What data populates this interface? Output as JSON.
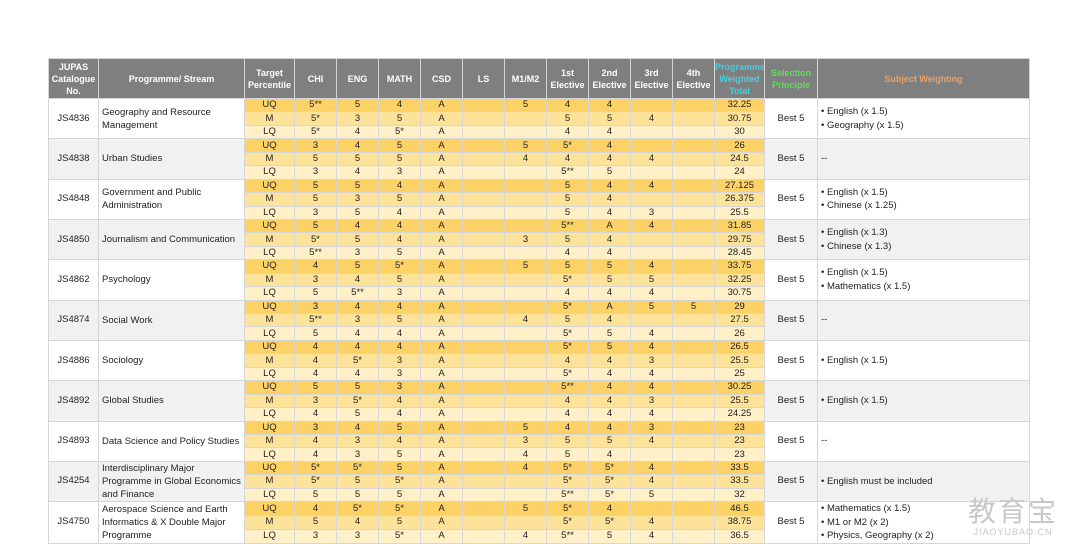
{
  "headers": {
    "catalogue": "JUPAS Catalogue No.",
    "programme": "Programme/ Stream",
    "target": "Target Percentile",
    "chi": "CHI",
    "eng": "ENG",
    "math": "MATH",
    "csd": "CSD",
    "ls": "LS",
    "m1m2": "M1/M2",
    "e1": "1st Elective",
    "e2": "2nd Elective",
    "e3": "3rd Elective",
    "e4": "4th Elective",
    "pwt": "Programme Weighted Total",
    "sp": "Selection Principle",
    "sw": "Subject Weighting"
  },
  "programmes": [
    {
      "code": "JS4836",
      "name": "Geography and Resource Management",
      "principle": "Best 5",
      "weighting": [
        "• English (x 1.5)",
        "• Geography (x 1.5)"
      ],
      "rows": [
        {
          "p": "UQ",
          "chi": "5**",
          "eng": "5",
          "math": "4",
          "csd": "A",
          "ls": "",
          "m": "5",
          "e1": "4",
          "e2": "4",
          "e3": "",
          "e4": "",
          "total": "32.25"
        },
        {
          "p": "M",
          "chi": "5*",
          "eng": "3",
          "math": "5",
          "csd": "A",
          "ls": "",
          "m": "",
          "e1": "5",
          "e2": "5",
          "e3": "4",
          "e4": "",
          "total": "30.75"
        },
        {
          "p": "LQ",
          "chi": "5*",
          "eng": "4",
          "math": "5*",
          "csd": "A",
          "ls": "",
          "m": "",
          "e1": "4",
          "e2": "4",
          "e3": "",
          "e4": "",
          "total": "30"
        }
      ]
    },
    {
      "code": "JS4838",
      "name": "Urban Studies",
      "principle": "Best 5",
      "weighting": [
        "--"
      ],
      "rows": [
        {
          "p": "UQ",
          "chi": "3",
          "eng": "4",
          "math": "5",
          "csd": "A",
          "ls": "",
          "m": "5",
          "e1": "5*",
          "e2": "4",
          "e3": "",
          "e4": "",
          "total": "26"
        },
        {
          "p": "M",
          "chi": "5",
          "eng": "5",
          "math": "5",
          "csd": "A",
          "ls": "",
          "m": "4",
          "e1": "4",
          "e2": "4",
          "e3": "4",
          "e4": "",
          "total": "24.5"
        },
        {
          "p": "LQ",
          "chi": "3",
          "eng": "4",
          "math": "3",
          "csd": "A",
          "ls": "",
          "m": "",
          "e1": "5**",
          "e2": "5",
          "e3": "",
          "e4": "",
          "total": "24"
        }
      ]
    },
    {
      "code": "JS4848",
      "name": "Government and Public Administration",
      "principle": "Best 5",
      "weighting": [
        "• English (x 1.5)",
        "• Chinese (x 1.25)"
      ],
      "rows": [
        {
          "p": "UQ",
          "chi": "5",
          "eng": "5",
          "math": "4",
          "csd": "A",
          "ls": "",
          "m": "",
          "e1": "5",
          "e2": "4",
          "e3": "4",
          "e4": "",
          "total": "27.125"
        },
        {
          "p": "M",
          "chi": "5",
          "eng": "3",
          "math": "5",
          "csd": "A",
          "ls": "",
          "m": "",
          "e1": "5",
          "e2": "4",
          "e3": "",
          "e4": "",
          "total": "26.375"
        },
        {
          "p": "LQ",
          "chi": "3",
          "eng": "5",
          "math": "4",
          "csd": "A",
          "ls": "",
          "m": "",
          "e1": "5",
          "e2": "4",
          "e3": "3",
          "e4": "",
          "total": "25.5"
        }
      ]
    },
    {
      "code": "JS4850",
      "name": "Journalism and Communication",
      "principle": "Best 5",
      "weighting": [
        "• English (x 1.3)",
        "• Chinese (x 1.3)"
      ],
      "rows": [
        {
          "p": "UQ",
          "chi": "5",
          "eng": "4",
          "math": "4",
          "csd": "A",
          "ls": "",
          "m": "",
          "e1": "5**",
          "e2": "A",
          "e3": "4",
          "e4": "",
          "total": "31.85"
        },
        {
          "p": "M",
          "chi": "5*",
          "eng": "5",
          "math": "4",
          "csd": "A",
          "ls": "",
          "m": "3",
          "e1": "5",
          "e2": "4",
          "e3": "",
          "e4": "",
          "total": "29.75"
        },
        {
          "p": "LQ",
          "chi": "5**",
          "eng": "3",
          "math": "5",
          "csd": "A",
          "ls": "",
          "m": "",
          "e1": "4",
          "e2": "4",
          "e3": "",
          "e4": "",
          "total": "28.45"
        }
      ]
    },
    {
      "code": "JS4862",
      "name": "Psychology",
      "principle": "Best 5",
      "weighting": [
        "• English (x 1.5)",
        "• Mathematics (x 1.5)"
      ],
      "rows": [
        {
          "p": "UQ",
          "chi": "4",
          "eng": "5",
          "math": "5*",
          "csd": "A",
          "ls": "",
          "m": "5",
          "e1": "5",
          "e2": "5",
          "e3": "4",
          "e4": "",
          "total": "33.75"
        },
        {
          "p": "M",
          "chi": "3",
          "eng": "4",
          "math": "5",
          "csd": "A",
          "ls": "",
          "m": "",
          "e1": "5*",
          "e2": "5",
          "e3": "5",
          "e4": "",
          "total": "32.25"
        },
        {
          "p": "LQ",
          "chi": "5",
          "eng": "5**",
          "math": "3",
          "csd": "A",
          "ls": "",
          "m": "",
          "e1": "4",
          "e2": "4",
          "e3": "4",
          "e4": "",
          "total": "30.75"
        }
      ]
    },
    {
      "code": "JS4874",
      "name": "Social Work",
      "principle": "Best 5",
      "weighting": [
        "--"
      ],
      "rows": [
        {
          "p": "UQ",
          "chi": "3",
          "eng": "4",
          "math": "4",
          "csd": "A",
          "ls": "",
          "m": "",
          "e1": "5*",
          "e2": "A",
          "e3": "5",
          "e4": "5",
          "total": "29"
        },
        {
          "p": "M",
          "chi": "5**",
          "eng": "3",
          "math": "5",
          "csd": "A",
          "ls": "",
          "m": "4",
          "e1": "5",
          "e2": "4",
          "e3": "",
          "e4": "",
          "total": "27.5"
        },
        {
          "p": "LQ",
          "chi": "5",
          "eng": "4",
          "math": "4",
          "csd": "A",
          "ls": "",
          "m": "",
          "e1": "5*",
          "e2": "5",
          "e3": "4",
          "e4": "",
          "total": "26"
        }
      ]
    },
    {
      "code": "JS4886",
      "name": "Sociology",
      "principle": "Best 5",
      "weighting": [
        "• English (x 1.5)"
      ],
      "rows": [
        {
          "p": "UQ",
          "chi": "4",
          "eng": "4",
          "math": "4",
          "csd": "A",
          "ls": "",
          "m": "",
          "e1": "5*",
          "e2": "5",
          "e3": "4",
          "e4": "",
          "total": "26.5"
        },
        {
          "p": "M",
          "chi": "4",
          "eng": "5*",
          "math": "3",
          "csd": "A",
          "ls": "",
          "m": "",
          "e1": "4",
          "e2": "4",
          "e3": "3",
          "e4": "",
          "total": "25.5"
        },
        {
          "p": "LQ",
          "chi": "4",
          "eng": "4",
          "math": "3",
          "csd": "A",
          "ls": "",
          "m": "",
          "e1": "5*",
          "e2": "4",
          "e3": "4",
          "e4": "",
          "total": "25"
        }
      ]
    },
    {
      "code": "JS4892",
      "name": "Global Studies",
      "principle": "Best 5",
      "weighting": [
        "• English (x 1.5)"
      ],
      "rows": [
        {
          "p": "UQ",
          "chi": "5",
          "eng": "5",
          "math": "3",
          "csd": "A",
          "ls": "",
          "m": "",
          "e1": "5**",
          "e2": "4",
          "e3": "4",
          "e4": "",
          "total": "30.25"
        },
        {
          "p": "M",
          "chi": "3",
          "eng": "5*",
          "math": "4",
          "csd": "A",
          "ls": "",
          "m": "",
          "e1": "4",
          "e2": "4",
          "e3": "3",
          "e4": "",
          "total": "25.5"
        },
        {
          "p": "LQ",
          "chi": "4",
          "eng": "5",
          "math": "4",
          "csd": "A",
          "ls": "",
          "m": "",
          "e1": "4",
          "e2": "4",
          "e3": "4",
          "e4": "",
          "total": "24.25"
        }
      ]
    },
    {
      "code": "JS4893",
      "name": "Data Science and Policy Studies",
      "principle": "Best 5",
      "weighting": [
        "--"
      ],
      "rows": [
        {
          "p": "UQ",
          "chi": "3",
          "eng": "4",
          "math": "5",
          "csd": "A",
          "ls": "",
          "m": "5",
          "e1": "4",
          "e2": "4",
          "e3": "3",
          "e4": "",
          "total": "23"
        },
        {
          "p": "M",
          "chi": "4",
          "eng": "3",
          "math": "4",
          "csd": "A",
          "ls": "",
          "m": "3",
          "e1": "5",
          "e2": "5",
          "e3": "4",
          "e4": "",
          "total": "23"
        },
        {
          "p": "LQ",
          "chi": "4",
          "eng": "3",
          "math": "5",
          "csd": "A",
          "ls": "",
          "m": "4",
          "e1": "5",
          "e2": "4",
          "e3": "",
          "e4": "",
          "total": "23"
        }
      ]
    },
    {
      "code": "JS4254",
      "name": "Interdisciplinary Major Programme in Global Economics and Finance",
      "principle": "Best 5",
      "weighting": [
        "• English must be included"
      ],
      "rows": [
        {
          "p": "UQ",
          "chi": "5*",
          "eng": "5*",
          "math": "5",
          "csd": "A",
          "ls": "",
          "m": "4",
          "e1": "5*",
          "e2": "5*",
          "e3": "4",
          "e4": "",
          "total": "33.5"
        },
        {
          "p": "M",
          "chi": "5*",
          "eng": "5",
          "math": "5*",
          "csd": "A",
          "ls": "",
          "m": "",
          "e1": "5*",
          "e2": "5*",
          "e3": "4",
          "e4": "",
          "total": "33.5"
        },
        {
          "p": "LQ",
          "chi": "5",
          "eng": "5",
          "math": "5",
          "csd": "A",
          "ls": "",
          "m": "",
          "e1": "5**",
          "e2": "5*",
          "e3": "5",
          "e4": "",
          "total": "32"
        }
      ]
    },
    {
      "code": "JS4750",
      "name": "Aerospace Science and Earth Informatics & X Double Major Programme",
      "principle": "Best 5",
      "weighting": [
        "• Mathematics (x 1.5)",
        "• M1 or M2 (x 2)",
        "• Physics, Geography (x 2)"
      ],
      "rows": [
        {
          "p": "UQ",
          "chi": "4",
          "eng": "5*",
          "math": "5*",
          "csd": "A",
          "ls": "",
          "m": "5",
          "e1": "5*",
          "e2": "4",
          "e3": "",
          "e4": "",
          "total": "46.5"
        },
        {
          "p": "M",
          "chi": "5",
          "eng": "4",
          "math": "5",
          "csd": "A",
          "ls": "",
          "m": "",
          "e1": "5*",
          "e2": "5*",
          "e3": "4",
          "e4": "",
          "total": "38.75"
        },
        {
          "p": "LQ",
          "chi": "3",
          "eng": "3",
          "math": "5*",
          "csd": "A",
          "ls": "",
          "m": "4",
          "e1": "5**",
          "e2": "5",
          "e3": "4",
          "e4": "",
          "total": "36.5"
        }
      ]
    }
  ],
  "watermark": {
    "cn": "教育宝",
    "en": "JIAOYUBAO.CN"
  }
}
